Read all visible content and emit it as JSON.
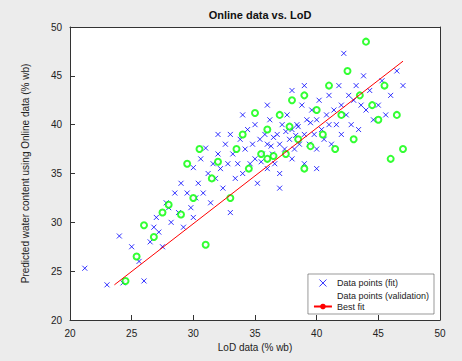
{
  "chart_data": {
    "type": "scatter",
    "title": "Online data vs. LoD",
    "x_label": "LoD data (% wb)",
    "y_label": "Predicted water content using Online data (% wb)",
    "xlim": [
      20,
      50
    ],
    "xticks": [
      20,
      25,
      30,
      35,
      40,
      45,
      50
    ],
    "ylim": [
      20,
      50
    ],
    "yticks": [
      20,
      25,
      30,
      35,
      40,
      45,
      50
    ],
    "grid": false,
    "legend": "lower right",
    "series": [
      {
        "name": "Data points (fit)",
        "type": "scatter",
        "marker": "x",
        "color": "#0000ff",
        "x": [
          21.2,
          23,
          24,
          24.3,
          25,
          25.6,
          26,
          26.5,
          26.8,
          27,
          27.2,
          27.5,
          27.8,
          28,
          28.2,
          28.5,
          28.8,
          29,
          29.2,
          29.5,
          29.8,
          30,
          30.2,
          30.4,
          30.6,
          30.8,
          31,
          31.2,
          31.4,
          31.6,
          31.8,
          32,
          32.2,
          32.4,
          32.6,
          32.8,
          33,
          33.2,
          33.4,
          33.6,
          33.8,
          34,
          34.2,
          34.4,
          34.6,
          34.8,
          35,
          35,
          35.2,
          35.4,
          35.6,
          35.8,
          36,
          36,
          36.2,
          36.4,
          36.6,
          36.8,
          37,
          37,
          37.2,
          37.4,
          37.6,
          37.8,
          38,
          38,
          38.2,
          38.4,
          38.6,
          38.8,
          39,
          39,
          39.2,
          39.4,
          39.6,
          39.8,
          40,
          40,
          40.2,
          40.4,
          40.6,
          40.8,
          41,
          41,
          41.2,
          41.4,
          41.6,
          41.8,
          42,
          42,
          42.2,
          42.4,
          42.6,
          42.8,
          43,
          43.2,
          43.4,
          43.6,
          43.8,
          44,
          44.3,
          44.6,
          45,
          45.3,
          45.6,
          46,
          46.5,
          47,
          33,
          34,
          36,
          38,
          39,
          30,
          32,
          37,
          40,
          35.5,
          36.5,
          37.5,
          38.5,
          39.5,
          36.3,
          38.3
        ],
        "values": [
          25.3,
          23.6,
          28.6,
          23.8,
          27.5,
          26,
          24,
          28,
          29.5,
          30.5,
          29,
          27.5,
          32,
          31.5,
          30,
          33,
          31,
          34,
          29.5,
          33,
          31.5,
          35.6,
          32.5,
          34,
          36.5,
          33,
          37.6,
          35,
          32,
          36,
          34.5,
          37,
          35.5,
          33.5,
          38,
          36,
          39,
          37,
          34.5,
          36,
          38.5,
          35,
          37.5,
          39.5,
          36,
          38,
          36.5,
          40,
          34,
          38.5,
          37,
          39,
          35.5,
          38,
          40.5,
          37,
          36,
          39,
          38,
          35,
          40,
          37.5,
          41,
          38.5,
          36.5,
          39.5,
          37.5,
          40,
          38,
          42,
          39,
          36,
          40.5,
          38,
          41.5,
          39,
          37.5,
          40.5,
          42.5,
          39.5,
          38.5,
          41,
          40,
          43,
          38,
          41.5,
          40,
          44,
          39,
          42,
          47.3,
          41,
          43,
          40,
          42.5,
          44,
          39.5,
          42,
          45,
          41.5,
          43.5,
          40.5,
          42,
          44.5,
          41,
          43,
          45.5,
          44,
          31,
          41,
          42,
          43.5,
          44,
          30.5,
          39,
          33.5,
          35.5,
          36.2,
          38.7,
          39.3,
          39.8,
          40.2,
          37.8,
          38.9
        ]
      },
      {
        "name": "Data points (validation)",
        "type": "scatter",
        "marker": "circle",
        "color": "#00ff00",
        "x": [
          24.5,
          25.4,
          26,
          26.8,
          27.5,
          28,
          29,
          29.5,
          30,
          30.5,
          31,
          31.5,
          32,
          33,
          33.5,
          34,
          34.5,
          35,
          35.5,
          36,
          36.5,
          37,
          37.5,
          38,
          38.5,
          39,
          39.5,
          40,
          40.5,
          41,
          41.5,
          42,
          42.5,
          43,
          43.5,
          44,
          44.5,
          45,
          45.5,
          46,
          46.5,
          47,
          39,
          36,
          37.8
        ],
        "values": [
          24,
          26.5,
          29.7,
          28.5,
          31,
          31.8,
          30.8,
          36,
          32.5,
          37.5,
          27.7,
          34.5,
          36.2,
          32.5,
          37.5,
          39,
          35.5,
          41.2,
          37,
          39.5,
          36.8,
          41,
          37,
          42.5,
          38.5,
          43,
          37.8,
          41.5,
          39,
          44,
          37.5,
          41,
          45.5,
          38.5,
          43,
          48.5,
          42,
          40.5,
          44,
          36.5,
          41,
          37.5,
          35.5,
          36.5,
          39.8
        ]
      },
      {
        "name": "Best fit",
        "type": "line",
        "line_style": "solid",
        "color": "#ff0000",
        "x": [
          23.6,
          47
        ],
        "values": [
          23.6,
          46.5
        ]
      }
    ]
  }
}
